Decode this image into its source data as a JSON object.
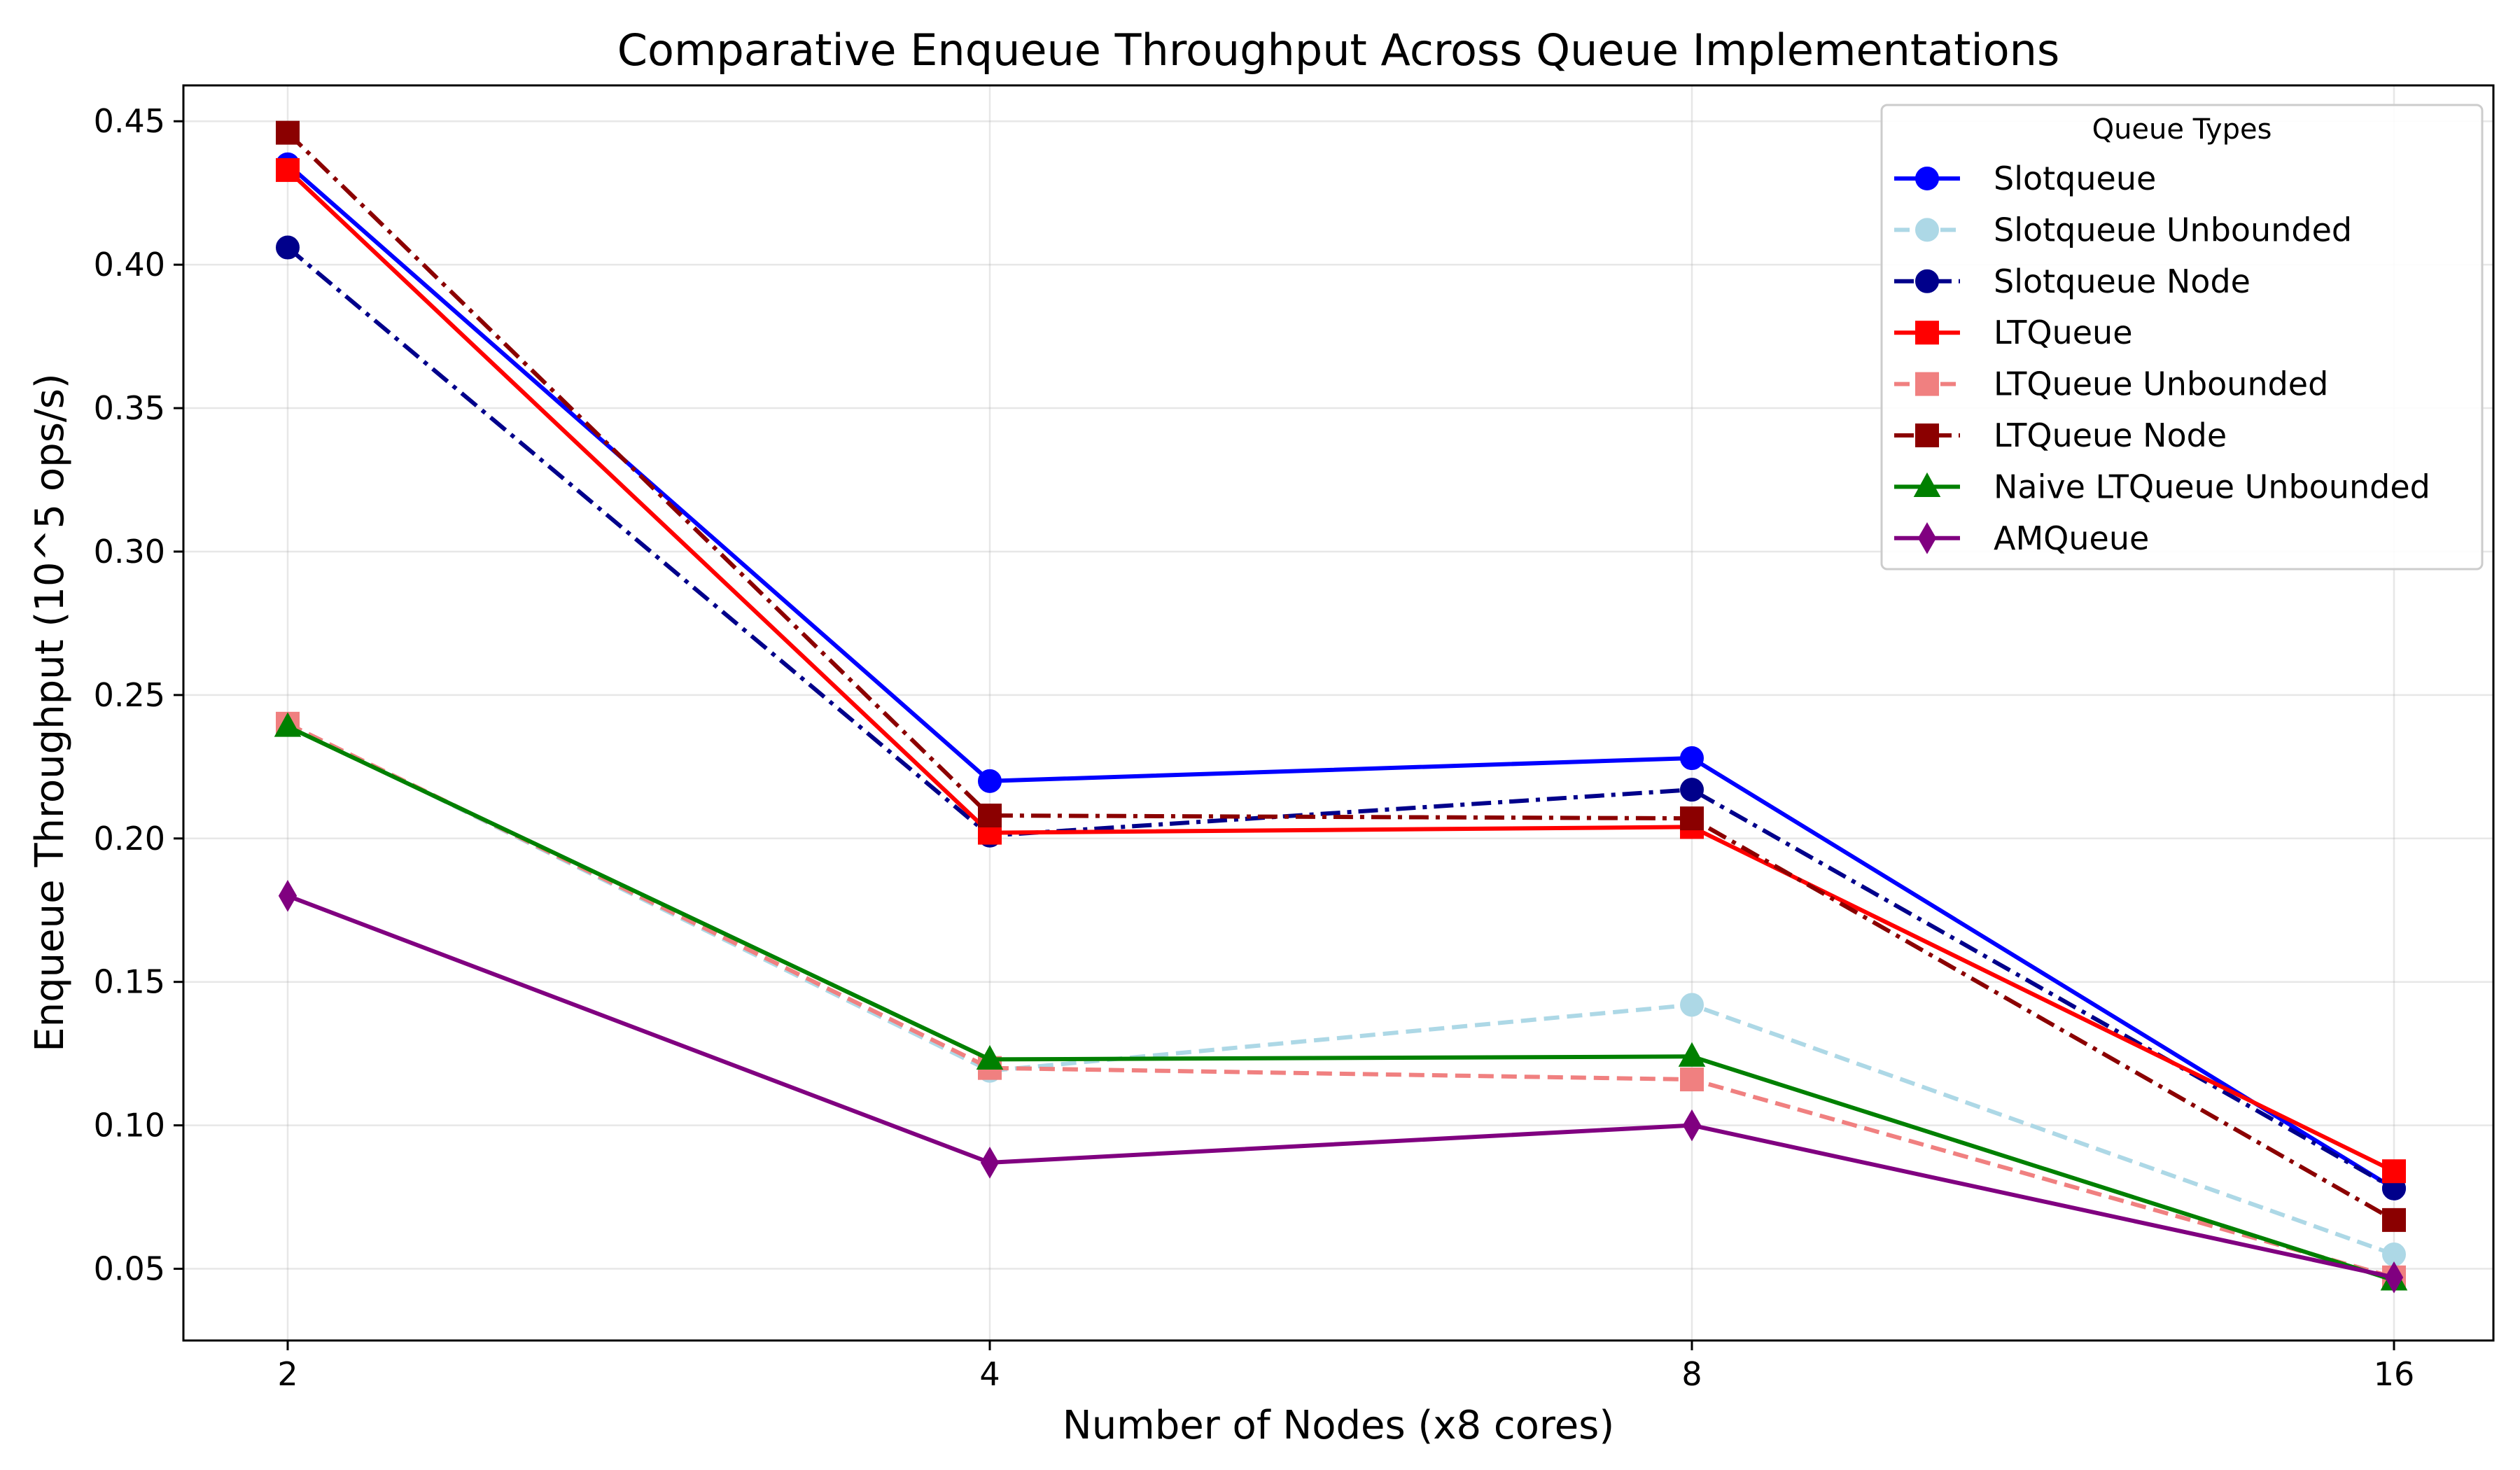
{
  "chart_data": {
    "type": "line",
    "title": "Comparative Enqueue Throughput Across Queue Implementations",
    "xlabel": "Number of Nodes (x8 cores)",
    "ylabel": "Enqueue Throughput (10^5 ops/s)",
    "x": [
      "2",
      "4",
      "8",
      "16"
    ],
    "ylim": [
      0.025,
      0.4625
    ],
    "yticks": [
      "0.05",
      "0.10",
      "0.15",
      "0.20",
      "0.25",
      "0.30",
      "0.35",
      "0.40",
      "0.45"
    ],
    "grid": true,
    "legend": {
      "title": "Queue Types",
      "position": "top-right"
    },
    "series": [
      {
        "name": "Slotqueue",
        "values": [
          0.435,
          0.22,
          0.228,
          0.078
        ],
        "color": "#0000ff",
        "linestyle": "solid",
        "marker": "circle"
      },
      {
        "name": "Slotqueue Unbounded",
        "values": [
          0.24,
          0.119,
          0.142,
          0.055
        ],
        "color": "#add8e6",
        "linestyle": "dashed",
        "marker": "circle"
      },
      {
        "name": "Slotqueue Node",
        "values": [
          0.406,
          0.201,
          0.217,
          0.078
        ],
        "color": "#00008b",
        "linestyle": "dashdot",
        "marker": "circle"
      },
      {
        "name": "LTQueue",
        "values": [
          0.433,
          0.202,
          0.204,
          0.084
        ],
        "color": "#ff0000",
        "linestyle": "solid",
        "marker": "square"
      },
      {
        "name": "LTQueue Unbounded",
        "values": [
          0.24,
          0.12,
          0.116,
          0.047
        ],
        "color": "#f08080",
        "linestyle": "dashed",
        "marker": "square"
      },
      {
        "name": "LTQueue Node",
        "values": [
          0.446,
          0.208,
          0.207,
          0.067
        ],
        "color": "#8b0000",
        "linestyle": "dashdot",
        "marker": "square"
      },
      {
        "name": "Naive LTQueue Unbounded",
        "values": [
          0.239,
          0.123,
          0.124,
          0.046
        ],
        "color": "#008000",
        "linestyle": "solid",
        "marker": "triangle"
      },
      {
        "name": "AMQueue",
        "values": [
          0.18,
          0.087,
          0.1,
          0.047
        ],
        "color": "#800080",
        "linestyle": "solid",
        "marker": "diamond"
      }
    ]
  }
}
